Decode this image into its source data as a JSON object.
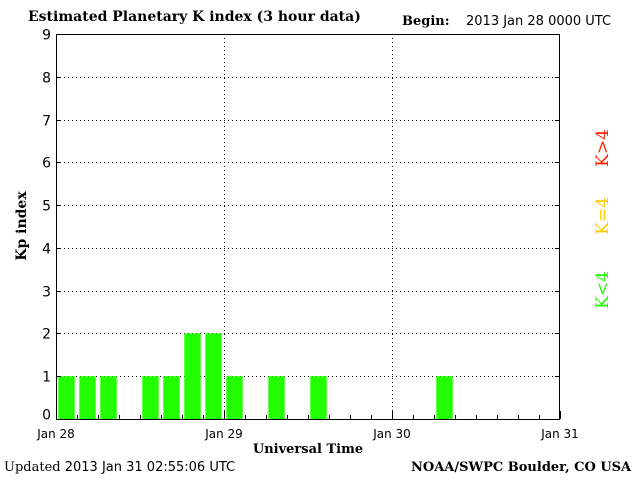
{
  "header": {
    "title": "Estimated Planetary K index (3 hour data)",
    "begin_label": "Begin:",
    "begin_value": "2013 Jan 28 0000 UTC"
  },
  "footer": {
    "updated_label": "Updated",
    "updated_value": "2013 Jan 31 02:55:06 UTC",
    "source": "NOAA/SWPC Boulder, CO USA"
  },
  "legend": {
    "high": {
      "label": "K>4",
      "color": "#ff2200"
    },
    "equal": {
      "label": "K=4",
      "color": "#ffcc00"
    },
    "low": {
      "label": "K<4",
      "color": "#22ff00"
    }
  },
  "chart_data": {
    "type": "bar",
    "title": "Estimated Planetary K index (3 hour data)",
    "xlabel": "Universal Time",
    "ylabel": "Kp index",
    "ylim": [
      0,
      9
    ],
    "yticks": [
      "0",
      "1",
      "2",
      "3",
      "4",
      "5",
      "6",
      "7",
      "8",
      "9"
    ],
    "xlim_days": [
      0,
      3
    ],
    "xticks": [
      {
        "label": "Jan 28",
        "day": 0
      },
      {
        "label": "Jan 29",
        "day": 1
      },
      {
        "label": "Jan 30",
        "day": 2
      },
      {
        "label": "Jan 31",
        "day": 3
      }
    ],
    "grid": "dotted",
    "bar_color": "#22ff00",
    "interval_hours": 3,
    "values": [
      1,
      1,
      1,
      null,
      1,
      1,
      2,
      2,
      1,
      null,
      1,
      null,
      1,
      null,
      null,
      null,
      null,
      null,
      1,
      null,
      null,
      null,
      null,
      null
    ]
  }
}
